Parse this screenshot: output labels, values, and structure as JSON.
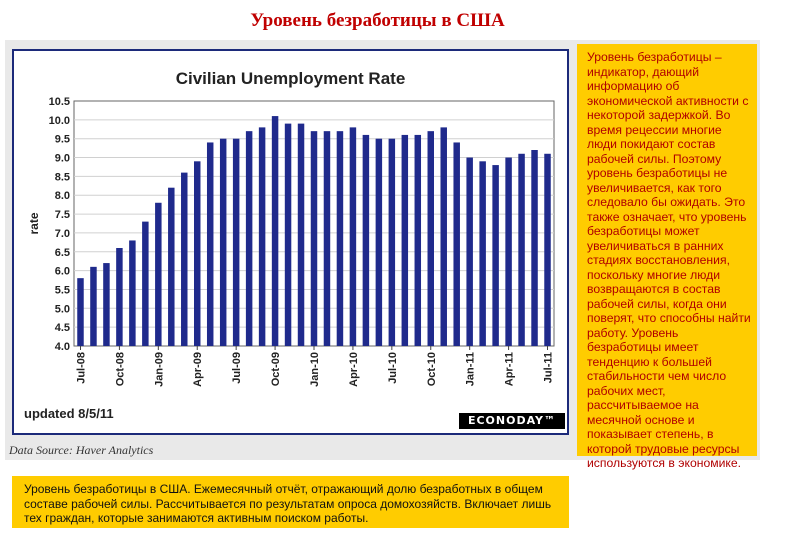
{
  "slide": {
    "title": "Уровень безработицы в США",
    "side_note": "Уровень безработицы – индикатор, дающий информацию об экономической активности с некоторой задержкой. Во время рецессии многие люди покидают состав рабочей силы. Поэтому уровень безработицы не увеличивается, как того следовало бы ожидать. Это также означает, что уровень безработицы может увеличиваться в ранних стадиях восстановления, поскольку многие люди возвращаются в состав рабочей силы, когда они поверят, что способны найти работу. Уровень безработицы имеет тенденцию к большей стабильности чем число рабочих мест, рассчитываемое на месячной основе и показывает степень, в которой трудовые ресурсы используются в экономике.",
    "bottom_note": "Уровень безработицы в США. Ежемесячный отчёт, отражающий долю безработных в общем составе рабочей силы. Рассчитывается по результатам опроса домохозяйств. Включает лишь тех граждан, которые занимаются активным поиском работы.",
    "source": "Data Source: Haver Analytics",
    "updated": "updated 8/5/11",
    "logo_text": "ECONODAY™"
  },
  "colors": {
    "title_red": "#c00000",
    "note_yellow": "#ffcc00",
    "bar_navy": "#1f2a8c",
    "frame_navy": "#1c2a7a"
  },
  "chart_data": {
    "type": "bar",
    "title": "Civilian Unemployment Rate",
    "xlabel": "",
    "ylabel": "rate",
    "ylim": [
      4.0,
      10.5
    ],
    "yticks": [
      "4.0",
      "4.5",
      "5.0",
      "5.5",
      "6.0",
      "6.5",
      "7.0",
      "7.5",
      "8.0",
      "8.5",
      "9.0",
      "9.5",
      "10.0",
      "10.5"
    ],
    "grid": true,
    "categories": [
      "Jul-08",
      "Aug-08",
      "Sep-08",
      "Oct-08",
      "Nov-08",
      "Dec-08",
      "Jan-09",
      "Feb-09",
      "Mar-09",
      "Apr-09",
      "May-09",
      "Jun-09",
      "Jul-09",
      "Aug-09",
      "Sep-09",
      "Oct-09",
      "Nov-09",
      "Dec-09",
      "Jan-10",
      "Feb-10",
      "Mar-10",
      "Apr-10",
      "May-10",
      "Jun-10",
      "Jul-10",
      "Aug-10",
      "Sep-10",
      "Oct-10",
      "Nov-10",
      "Dec-10",
      "Jan-11",
      "Feb-11",
      "Mar-11",
      "Apr-11",
      "May-11",
      "Jun-11",
      "Jul-11"
    ],
    "tick_labels": [
      "Jul-08",
      "Oct-08",
      "Jan-09",
      "Apr-09",
      "Jul-09",
      "Oct-09",
      "Jan-10",
      "Apr-10",
      "Jul-10",
      "Oct-10",
      "Jan-11",
      "Apr-11",
      "Jul-11"
    ],
    "values": [
      5.8,
      6.1,
      6.2,
      6.6,
      6.8,
      7.3,
      7.8,
      8.2,
      8.6,
      8.9,
      9.4,
      9.5,
      9.5,
      9.7,
      9.8,
      10.1,
      9.9,
      9.9,
      9.7,
      9.7,
      9.7,
      9.8,
      9.6,
      9.5,
      9.5,
      9.6,
      9.6,
      9.7,
      9.8,
      9.4,
      9.0,
      8.9,
      8.8,
      9.0,
      9.1,
      9.2,
      9.1
    ]
  }
}
